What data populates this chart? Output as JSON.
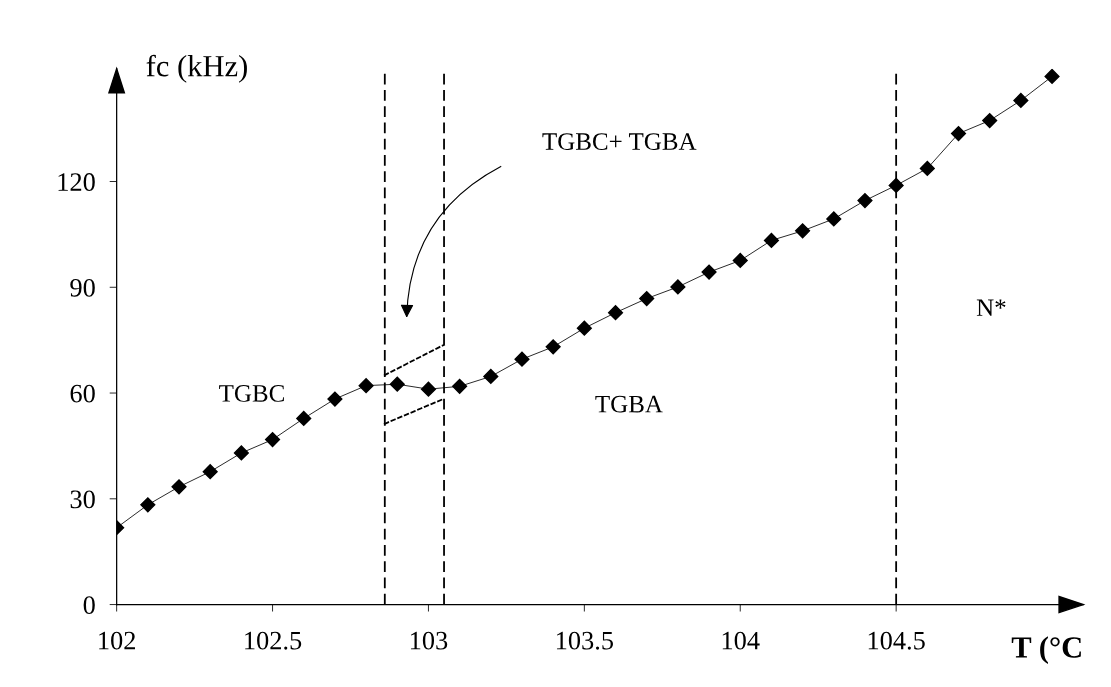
{
  "chart_data": {
    "type": "line",
    "xlabel": "T (°C",
    "ylabel": "fc (kHz)",
    "xlim": [
      102,
      105.1
    ],
    "ylim": [
      0,
      152
    ],
    "xticks": [
      102,
      102.5,
      103,
      103.5,
      104,
      104.5
    ],
    "yticks": [
      0,
      30,
      60,
      90,
      120
    ],
    "marker": "diamond",
    "series": [
      {
        "color": "#000000",
        "line_style": "solid",
        "x": [
          102.0,
          102.1,
          102.2,
          102.3,
          102.4,
          102.5,
          102.6,
          102.7,
          102.8,
          102.9,
          103.0,
          103.1,
          103.2,
          103.3,
          103.4,
          103.5,
          103.6,
          103.7,
          103.8,
          103.9,
          104.0,
          104.1,
          104.2,
          104.3,
          104.4,
          104.5,
          104.6,
          104.7,
          104.8,
          104.9,
          105.0
        ],
        "values": [
          21.8,
          28.3,
          33.4,
          37.7,
          43.0,
          46.8,
          52.8,
          58.3,
          62.1,
          62.5,
          61.1,
          61.9,
          64.7,
          69.6,
          73.1,
          78.4,
          82.8,
          86.8,
          90.1,
          94.3,
          97.6,
          103.3,
          106.0,
          109.4,
          114.6,
          118.9,
          123.7,
          133.6,
          137.3,
          143.0,
          149.8
        ]
      },
      {
        "color": "#000000",
        "marker": "none",
        "line_style": "dotted",
        "x": [
          102.86,
          103.05
        ],
        "values": [
          65.1,
          73.7
        ]
      },
      {
        "color": "#000000",
        "marker": "none",
        "line_style": "dotted",
        "x": [
          102.86,
          103.05
        ],
        "values": [
          51.3,
          58.4
        ]
      }
    ],
    "ref_lines": [
      {
        "axis": "x",
        "value": 102.86,
        "color": "#000000",
        "line_style": "dashed"
      },
      {
        "axis": "x",
        "value": 103.05,
        "color": "#000000",
        "line_style": "dashed"
      },
      {
        "axis": "x",
        "value": 104.5,
        "color": "#000000",
        "line_style": "dashed"
      }
    ],
    "annotations": [
      "TGBC+ TGBA",
      "TGBC",
      "TGBA",
      "N*"
    ]
  }
}
